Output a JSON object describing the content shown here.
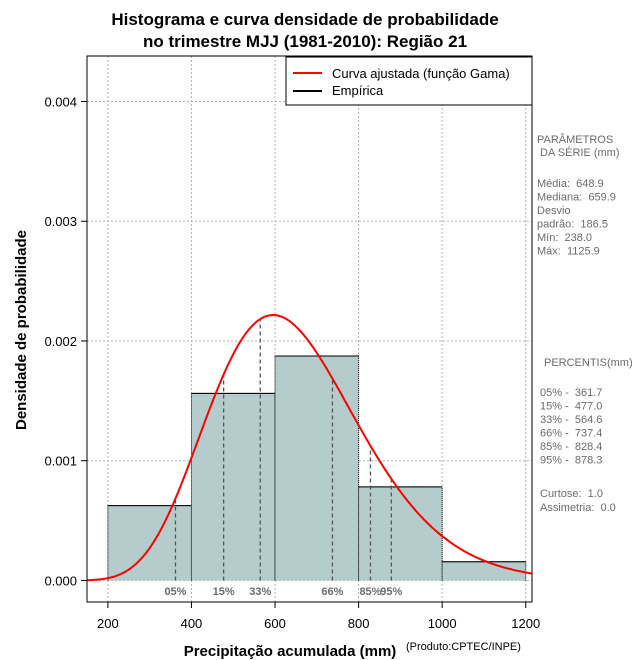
{
  "chart_data": {
    "type": "histogram",
    "title": [
      "Histograma e curva densidade de probabilidade",
      "no trimestre MJJ (1981-2010): Região 21"
    ],
    "xlabel": "Precipitação acumulada (mm)",
    "ylabel": "Densidade de probabilidade",
    "credit": "(Produto:CPTEC/INPE)",
    "xlim": [
      150,
      1215
    ],
    "ylim": [
      -0.00018,
      0.00438
    ],
    "x_ticks": [
      200,
      400,
      600,
      800,
      1000,
      1200
    ],
    "x_tick_labels": [
      "200",
      "400",
      "600",
      "800",
      "1000",
      "1200"
    ],
    "y_ticks": [
      0,
      0.001,
      0.002,
      0.003,
      0.004
    ],
    "y_tick_labels": [
      "0.000",
      "0.001",
      "0.002",
      "0.003",
      "0.004"
    ],
    "grid": true,
    "bins": [
      {
        "x0": 200,
        "x1": 400,
        "density": 0.000625
      },
      {
        "x0": 400,
        "x1": 600,
        "density": 0.001562
      },
      {
        "x0": 600,
        "x1": 800,
        "density": 0.001875
      },
      {
        "x0": 800,
        "x1": 1000,
        "density": 0.000781
      },
      {
        "x0": 1000,
        "x1": 1200,
        "density": 0.000156
      }
    ],
    "curve": {
      "name": "Curva ajustada (função Gama)",
      "distribution": "gamma",
      "mean": 648.9,
      "sd": 186.5,
      "color": "#ff0000"
    },
    "percentiles": [
      {
        "label": "05%",
        "value": 361.7
      },
      {
        "label": "15%",
        "value": 477.0
      },
      {
        "label": "33%",
        "value": 564.6
      },
      {
        "label": "66%",
        "value": 737.4
      },
      {
        "label": "85%",
        "value": 828.4
      },
      {
        "label": "95%",
        "value": 878.3
      }
    ],
    "legend": {
      "position": "top-right",
      "entries": [
        {
          "label": "Curva ajustada (função Gama)",
          "color": "#ff0000"
        },
        {
          "label": "Empírica",
          "color": "#000000"
        }
      ]
    },
    "colors": {
      "bar_fill": "#b4cccb",
      "curve": "#ff0000",
      "side_text": "#6b6b6b"
    }
  },
  "side_panel": {
    "params_heading": [
      "PARÂMETROS",
      " DA SÉRIE (mm)"
    ],
    "params_lines": [
      "Média:  648.9",
      "Mediana:  659.9",
      "Desvio",
      "padrão:  186.5",
      "Mín:  238.0",
      "Máx:  1125.9"
    ],
    "percentis_heading": "PERCENTIS(mm)",
    "percentis_lines": [
      "05% -  361.7",
      "15% -  477.0",
      "33% -  564.6",
      "66% -  737.4",
      "85% -  828.4",
      "95% -  878.3"
    ],
    "stats_lines": [
      "Curtose:  1.0",
      "Assimetria:  0.0"
    ]
  }
}
